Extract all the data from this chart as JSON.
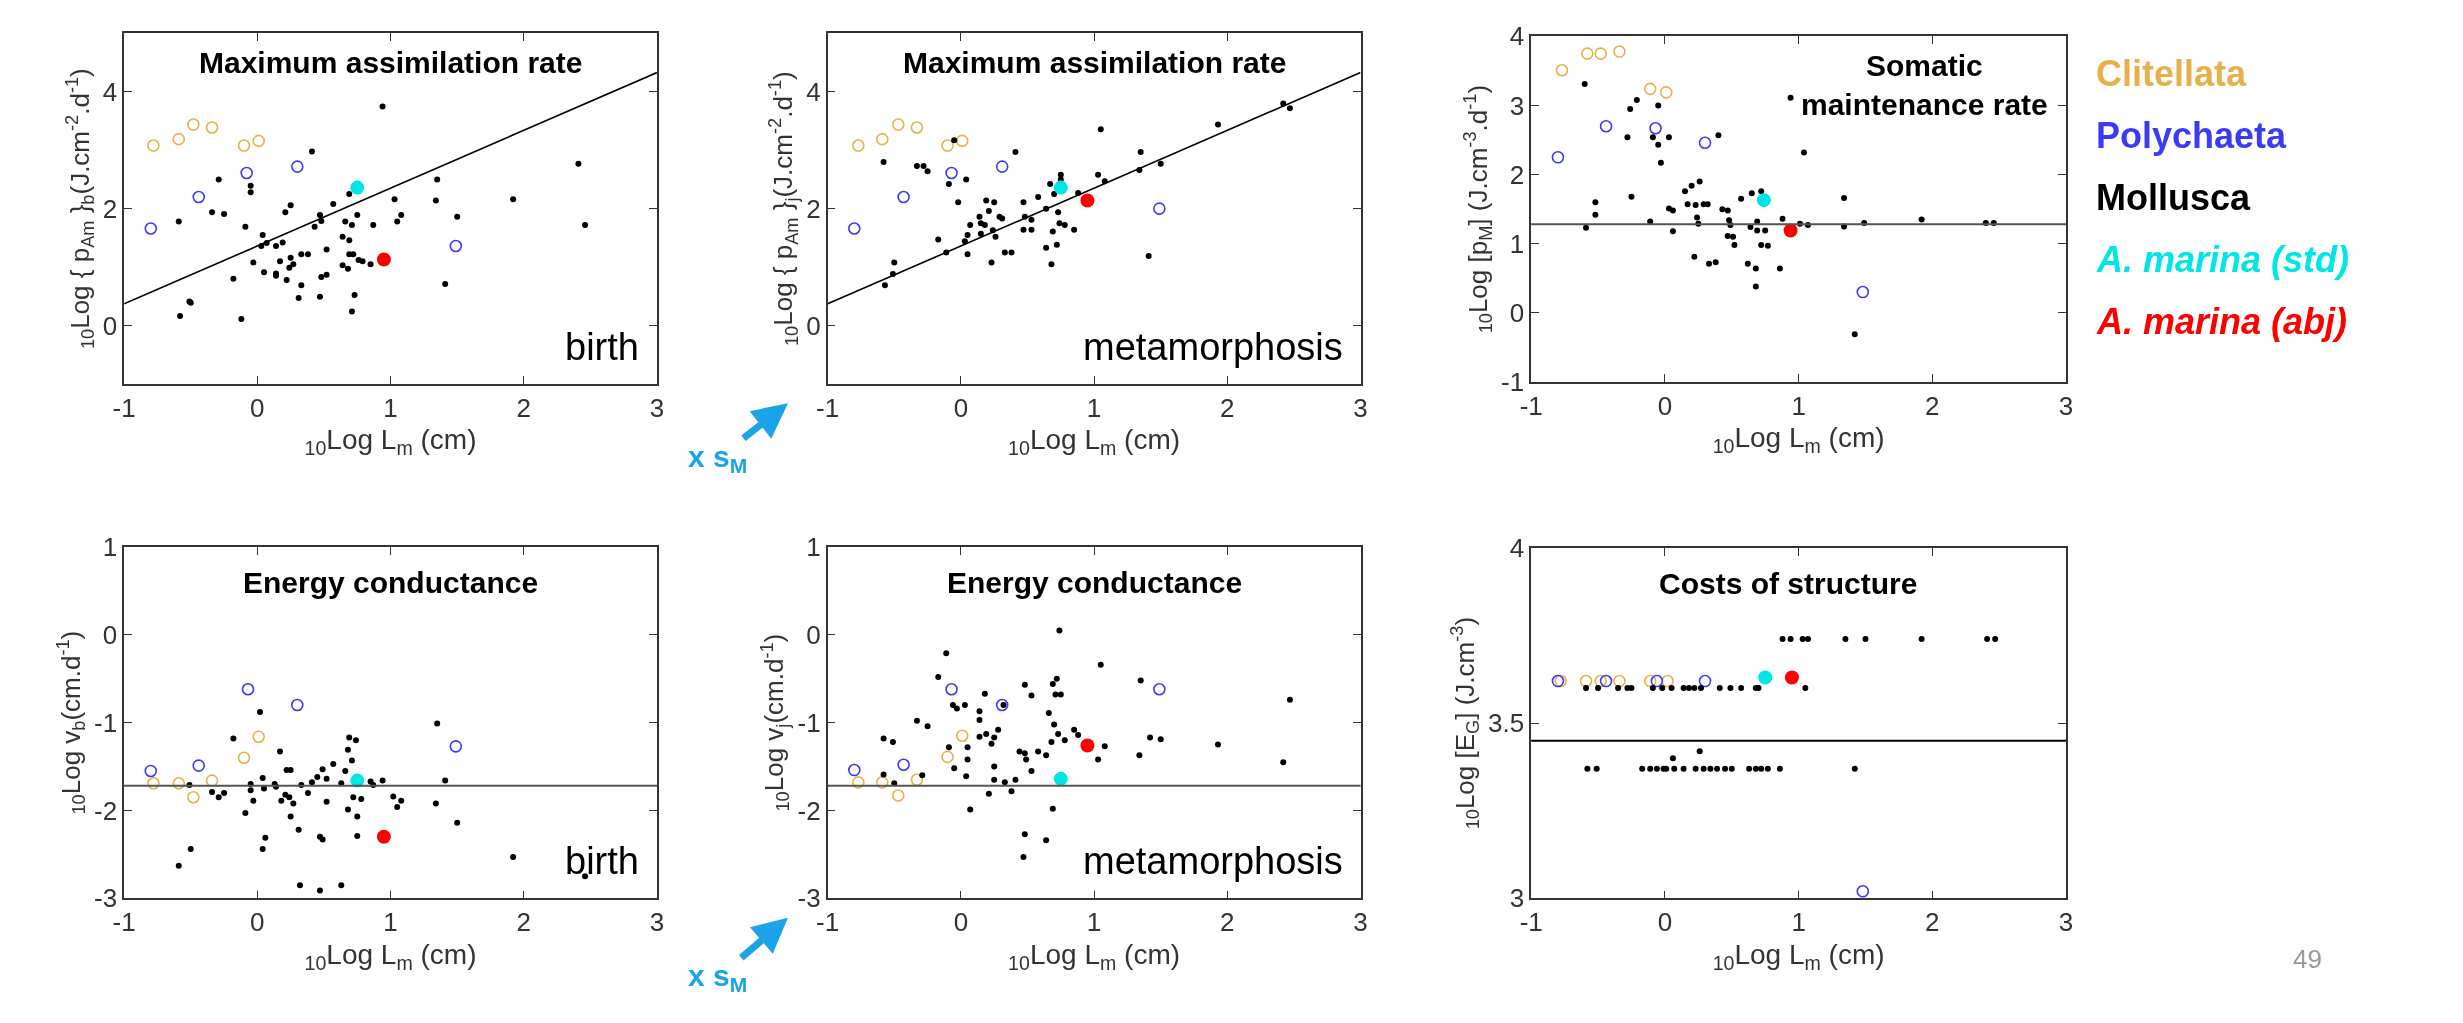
{
  "chart_data": [
    {
      "type": "scatter",
      "title": "Maximum assimilation rate",
      "xlabel": "$_{10}$Log L$_{m}$ (cm)",
      "ylabel": "$_{10}$Log { p$_{Am}$ }$_{b}$(J.cm$^{-2}$.d$^{-1}$)",
      "xlim": [
        -1,
        3
      ],
      "xticks": [
        -1,
        0,
        1,
        2,
        3
      ],
      "ylim": [
        -1,
        5
      ],
      "yticks": [
        0,
        2,
        4
      ],
      "annotations": [
        "birth",
        "x s$_{M}$"
      ],
      "series": [
        {
          "color": "#e8b04a",
          "marker": "circle-open",
          "x": [
            -0.78,
            -0.59,
            -0.48,
            -0.34,
            -0.1,
            0.01
          ],
          "values": [
            3.08,
            3.19,
            3.44,
            3.39,
            3.08,
            3.16
          ]
        },
        {
          "color": "#3b3bf5",
          "marker": "circle-open",
          "x": [
            -0.8,
            -0.44,
            -0.08,
            0.3,
            1.49
          ],
          "values": [
            1.66,
            2.2,
            2.61,
            2.72,
            1.36
          ]
        },
        {
          "color": "#000000",
          "marker": "circle",
          "x": [
            0.94,
            0.41,
            -0.29,
            -0.05,
            -0.05,
            0.25,
            0.21,
            -0.34,
            -0.25,
            -0.59,
            -0.09,
            0.57,
            0.69,
            0.47,
            0.48,
            0.43,
            0.66,
            0.71,
            0.75,
            0.87,
            1.03,
            1.08,
            1.05,
            1.35,
            1.34,
            1.5,
            1.92,
            2.41,
            2.46,
            1.41,
            0.04,
            0.03,
            0.07,
            0.19,
            0.14,
            0.64,
            0.69,
            0.52,
            0.33,
            0.38,
            0.25,
            0.17,
            0.27,
            0.24,
            -0.03,
            0.05,
            0.14,
            0.14,
            0.22,
            -0.18,
            0.33,
            0.48,
            0.52,
            0.64,
            0.68,
            0.69,
            0.72,
            0.76,
            0.79,
            0.85,
            0.31,
            0.47,
            0.73,
            0.71,
            -0.51,
            -0.5,
            -0.58,
            -0.12
          ],
          "values": [
            3.75,
            2.98,
            2.5,
            2.39,
            2.28,
            2.06,
            1.94,
            1.94,
            1.91,
            1.78,
            1.69,
            2.08,
            2.25,
            1.89,
            1.79,
            1.69,
            1.78,
            1.72,
            1.89,
            1.72,
            2.16,
            1.89,
            1.78,
            2.5,
            2.14,
            1.86,
            2.16,
            2.77,
            1.72,
            0.71,
            1.55,
            1.36,
            1.41,
            1.42,
            1.36,
            1.52,
            1.46,
            1.3,
            1.22,
            1.22,
            1.16,
            1.1,
            1.05,
            0.99,
            1.08,
            0.91,
            0.89,
            0.85,
            0.78,
            0.8,
            0.69,
            0.83,
            0.87,
            1.03,
            0.97,
            1.22,
            1.22,
            1.12,
            1.1,
            1.05,
            0.47,
            0.49,
            0.52,
            0.24,
            0.41,
            0.39,
            0.16,
            0.11
          ]
        },
        {
          "color": "#00e5e5",
          "marker": "circle",
          "x": [
            0.75
          ],
          "values": [
            2.36
          ]
        },
        {
          "color": "#ff0000",
          "marker": "circle",
          "x": [
            0.95
          ],
          "values": [
            1.13
          ]
        },
        {
          "type": "line",
          "color": "#000000",
          "marker": "none",
          "x": [
            -1,
            3
          ],
          "values": [
            0.37,
            4.33
          ]
        }
      ]
    },
    {
      "type": "scatter",
      "title": "Maximum assimilation rate",
      "xlabel": "$_{10}$Log L$_{m}$ (cm)",
      "ylabel": "$_{10}$Log { p$_{Am}$ }$_{j}$(J.cm$^{-2}$.d$^{-1}$)",
      "xlim": [
        -1,
        3
      ],
      "xticks": [
        -1,
        0,
        1,
        2,
        3
      ],
      "ylim": [
        -1,
        5
      ],
      "yticks": [
        0,
        2,
        4
      ],
      "annotations": [
        "metamorphosis"
      ],
      "series": [
        {
          "color": "#e8b04a",
          "marker": "circle-open",
          "x": [
            -0.77,
            -0.59,
            -0.47,
            -0.33,
            -0.1,
            0.01
          ],
          "values": [
            3.08,
            3.19,
            3.44,
            3.39,
            3.08,
            3.16
          ]
        },
        {
          "color": "#3b3bf5",
          "marker": "circle-open",
          "x": [
            -0.8,
            -0.43,
            -0.07,
            0.31,
            1.49
          ],
          "values": [
            1.66,
            2.2,
            2.61,
            2.72,
            2.0
          ]
        },
        {
          "color": "#000000",
          "marker": "circle",
          "x": [
            2.42,
            2.47,
            1.93,
            1.05,
            1.35,
            1.5,
            1.34,
            0.41,
            -0.05,
            -0.58,
            -0.33,
            -0.28,
            -0.25,
            0.04,
            -0.09,
            -0.02,
            0.19,
            0.25,
            0.58,
            0.47,
            0.67,
            0.75,
            0.75,
            1.03,
            1.08,
            0.7,
            0.88,
            0.64,
            0.73,
            0.48,
            0.53,
            0.14,
            0.21,
            0.29,
            0.31,
            0.07,
            0.15,
            0.18,
            0.24,
            0.15,
            0.26,
            0.05,
            0.03,
            -0.17,
            0.47,
            0.53,
            0.69,
            0.74,
            0.78,
            0.85,
            0.72,
            0.64,
            0.33,
            0.38,
            0.05,
            -0.11,
            0.23,
            0.68,
            1.41,
            -0.5,
            -0.51,
            -0.57
          ],
          "values": [
            3.8,
            3.72,
            3.44,
            3.36,
            2.97,
            2.77,
            2.66,
            2.97,
            3.17,
            2.8,
            2.73,
            2.73,
            2.64,
            2.5,
            2.42,
            2.11,
            2.14,
            2.11,
            2.2,
            2.11,
            2.42,
            2.58,
            2.5,
            2.58,
            2.47,
            2.25,
            2.27,
            2.0,
            1.94,
            1.86,
            1.81,
            1.86,
            1.96,
            1.86,
            1.83,
            1.72,
            1.75,
            1.72,
            1.63,
            1.57,
            1.52,
            1.55,
            1.44,
            1.47,
            1.64,
            1.64,
            1.61,
            1.75,
            1.72,
            1.64,
            1.38,
            1.33,
            1.25,
            1.25,
            1.22,
            1.25,
            1.08,
            1.05,
            1.19,
            1.08,
            0.88,
            0.69
          ]
        },
        {
          "color": "#00e5e5",
          "marker": "circle",
          "x": [
            0.75
          ],
          "values": [
            2.36
          ]
        },
        {
          "color": "#ff0000",
          "marker": "circle",
          "x": [
            0.95
          ],
          "values": [
            2.14
          ]
        },
        {
          "type": "line",
          "color": "#000000",
          "marker": "none",
          "x": [
            -1,
            3
          ],
          "values": [
            0.37,
            4.33
          ]
        }
      ]
    },
    {
      "type": "scatter",
      "title": "Somatic maintenance rate",
      "xlabel": "$_{10}$Log L$_{m}$ (cm)",
      "ylabel": "$_{10}$Log [p$_{M}$] (J.cm$^{-3}$.d$^{-1}$)",
      "xlim": [
        -1,
        3
      ],
      "xticks": [
        -1,
        0,
        1,
        2,
        3
      ],
      "ylim": [
        -1,
        4
      ],
      "yticks": [
        -1,
        0,
        1,
        2,
        3,
        4
      ],
      "ref_lines": [
        {
          "axis": "y",
          "value": 1.28,
          "color": "#555555"
        }
      ],
      "series": [
        {
          "name": "Clitellata",
          "color": "#e8b04a",
          "marker": "circle-open",
          "x": [
            -0.77,
            -0.58,
            -0.48,
            -0.34,
            -0.11,
            0.01
          ],
          "values": [
            3.51,
            3.75,
            3.75,
            3.78,
            3.24,
            3.19
          ]
        },
        {
          "name": "Polychaeta",
          "color": "#3b3bf5",
          "marker": "circle-open",
          "x": [
            -0.8,
            -0.44,
            -0.07,
            0.3,
            1.48
          ],
          "values": [
            2.25,
            2.7,
            2.67,
            2.46,
            0.3
          ]
        },
        {
          "name": "Mollusca",
          "color": "#000000",
          "marker": "circle",
          "x": [
            -0.6,
            -0.21,
            -0.26,
            -0.05,
            -0.28,
            -0.09,
            0.03,
            -0.05,
            0.4,
            -0.03,
            0.94,
            1.04,
            -0.52,
            -0.52,
            -0.59,
            -0.25,
            -0.11,
            0.03,
            0.06,
            0.06,
            0.15,
            0.2,
            0.26,
            0.17,
            0.23,
            0.29,
            0.32,
            0.24,
            0.25,
            0.43,
            0.47,
            0.48,
            0.49,
            0.47,
            0.51,
            0.52,
            0.22,
            0.33,
            0.38,
            0.57,
            0.65,
            0.72,
            0.64,
            0.69,
            0.69,
            0.75,
            0.72,
            0.77,
            0.62,
            0.68,
            0.68,
            0.86,
            0.88,
            1.01,
            1.07,
            1.34,
            1.34,
            1.49,
            1.42,
            1.92,
            2.4,
            2.46
          ],
          "values": [
            3.31,
            3.08,
            2.95,
            3.0,
            2.54,
            2.54,
            2.54,
            2.43,
            2.57,
            2.17,
            3.11,
            2.32,
            1.6,
            1.42,
            1.23,
            1.68,
            1.32,
            1.51,
            1.48,
            1.18,
            1.76,
            1.84,
            1.9,
            1.57,
            1.56,
            1.57,
            1.57,
            1.38,
            1.29,
            1.5,
            1.48,
            1.34,
            1.27,
            1.11,
            1.1,
            0.98,
            0.81,
            0.71,
            0.73,
            1.65,
            1.73,
            1.76,
            1.24,
            1.32,
            1.19,
            1.19,
            0.98,
            0.97,
            0.71,
            0.64,
            0.38,
            0.64,
            1.36,
            1.29,
            1.27,
            1.66,
            1.25,
            1.3,
            -0.31,
            1.35,
            1.3,
            1.3
          ]
        },
        {
          "name": "A. marina (std)",
          "color": "#00e5e5",
          "marker": "circle",
          "x": [
            0.74
          ],
          "values": [
            1.63
          ]
        },
        {
          "name": "A. marina (abj)",
          "color": "#ff0000",
          "marker": "circle",
          "x": [
            0.94
          ],
          "values": [
            1.19
          ]
        }
      ]
    },
    {
      "type": "scatter",
      "title": "Energy conductance",
      "xlabel": "$_{10}$Log L$_{m}$ (cm)",
      "ylabel": "$_{10}$Log v$_{b}$(cm.d$^{-1}$)",
      "xlim": [
        -1,
        3
      ],
      "xticks": [
        -1,
        0,
        1,
        2,
        3
      ],
      "ylim": [
        -3,
        1
      ],
      "yticks": [
        -3,
        -2,
        -1,
        0,
        1
      ],
      "annotations": [
        "birth",
        "x s$_{M}$"
      ],
      "ref_lines": [
        {
          "axis": "y",
          "value": -1.72,
          "color": "#555555"
        }
      ],
      "series": [
        {
          "color": "#e8b04a",
          "marker": "circle-open",
          "x": [
            -0.78,
            -0.59,
            -0.48,
            -0.34,
            -0.1,
            0.01
          ],
          "values": [
            -1.69,
            -1.69,
            -1.85,
            -1.66,
            -1.4,
            -1.16
          ]
        },
        {
          "color": "#3b3bf5",
          "marker": "circle-open",
          "x": [
            -0.8,
            -0.44,
            -0.07,
            0.3,
            1.49
          ],
          "values": [
            -1.55,
            -1.49,
            -0.62,
            -0.8,
            -1.27
          ]
        },
        {
          "color": "#000000",
          "marker": "circle",
          "x": [
            0.02,
            -0.18,
            0.17,
            1.35,
            0.69,
            0.74,
            0.68,
            0.71,
            0.66,
            0.57,
            0.49,
            0.52,
            0.45,
            0.41,
            0.22,
            0.25,
            0.04,
            -0.05,
            -0.05,
            0.05,
            0.13,
            0.14,
            0.33,
            0.38,
            0.63,
            0.85,
            0.94,
            0.87,
            1.41,
            -0.51,
            -0.34,
            -0.29,
            -0.25,
            -0.03,
            -0.09,
            0.18,
            0.21,
            0.24,
            0.27,
            0.25,
            0.52,
            0.72,
            0.78,
            0.68,
            0.75,
            1.02,
            1.08,
            1.05,
            1.34,
            1.5,
            0.31,
            0.47,
            0.49,
            0.75,
            0.06,
            0.04,
            -0.5,
            -0.59,
            0.32,
            0.47,
            0.63,
            1.92,
            2.46
          ],
          "values": [
            -0.88,
            -1.18,
            -1.33,
            -1.01,
            -1.17,
            -1.2,
            -1.31,
            -1.43,
            -1.55,
            -1.47,
            -1.53,
            -1.64,
            -1.62,
            -1.68,
            -1.54,
            -1.54,
            -1.63,
            -1.7,
            -1.77,
            -1.75,
            -1.7,
            -1.73,
            -1.71,
            -1.8,
            -1.69,
            -1.67,
            -1.66,
            -1.71,
            -1.66,
            -1.71,
            -1.79,
            -1.85,
            -1.8,
            -1.89,
            -2.03,
            -1.89,
            -1.82,
            -1.85,
            -1.92,
            -2.07,
            -1.9,
            -1.85,
            -1.87,
            -1.99,
            -2.07,
            -1.84,
            -1.89,
            -1.96,
            -1.92,
            -2.14,
            -2.22,
            -2.3,
            -2.33,
            -2.29,
            -2.31,
            -2.44,
            -2.44,
            -2.63,
            -2.85,
            -2.91,
            -2.85,
            -2.53,
            -2.75
          ]
        },
        {
          "color": "#00e5e5",
          "marker": "circle",
          "x": [
            0.75
          ],
          "values": [
            -1.66
          ]
        },
        {
          "color": "#ff0000",
          "marker": "circle",
          "x": [
            0.95
          ],
          "values": [
            -2.3
          ]
        }
      ]
    },
    {
      "type": "scatter",
      "title": "Energy conductance",
      "xlabel": "$_{10}$Log L$_{m}$ (cm)",
      "ylabel": "$_{10}$Log v$_{j}$(cm.d$^{-1}$)",
      "xlim": [
        -1,
        3
      ],
      "xticks": [
        -1,
        0,
        1,
        2,
        3
      ],
      "ylim": [
        -3,
        1
      ],
      "yticks": [
        -3,
        -2,
        -1,
        0,
        1
      ],
      "annotations": [
        "metamorphosis"
      ],
      "ref_lines": [
        {
          "axis": "y",
          "value": -1.72,
          "color": "#555555"
        }
      ],
      "series": [
        {
          "color": "#e8b04a",
          "marker": "circle-open",
          "x": [
            -0.77,
            -0.59,
            -0.47,
            -0.33,
            -0.1,
            0.01
          ],
          "values": [
            -1.68,
            -1.68,
            -1.83,
            -1.65,
            -1.39,
            -1.15
          ]
        },
        {
          "color": "#3b3bf5",
          "marker": "circle-open",
          "x": [
            -0.8,
            -0.43,
            -0.07,
            0.31,
            1.49
          ],
          "values": [
            -1.54,
            -1.48,
            -0.62,
            -0.8,
            -0.62
          ]
        },
        {
          "color": "#000000",
          "marker": "circle",
          "x": [
            0.74,
            -0.11,
            1.05,
            -0.17,
            1.35,
            2.47,
            0.48,
            0.72,
            0.69,
            0.53,
            0.71,
            0.75,
            0.18,
            -0.06,
            0.03,
            -0.03,
            0.32,
            0.14,
            0.14,
            -0.33,
            -0.25,
            0.28,
            0.19,
            0.14,
            0.25,
            0.23,
            0.66,
            0.7,
            0.73,
            0.68,
            0.78,
            0.85,
            0.88,
            1.08,
            1.03,
            1.42,
            1.5,
            1.34,
            1.93,
            2.42,
            -0.58,
            -0.51,
            -0.09,
            0.05,
            0.05,
            -0.05,
            0.04,
            0.44,
            0.48,
            0.58,
            0.64,
            0.49,
            0.53,
            0.25,
            0.25,
            0.33,
            0.41,
            -0.29,
            -0.58,
            -0.5,
            0.21,
            0.38,
            0.07,
            0.69,
            0.48,
            0.64,
            0.47
          ],
          "values": [
            0.05,
            -0.21,
            -0.34,
            -0.48,
            -0.52,
            -0.74,
            -0.57,
            -0.5,
            -0.56,
            -0.69,
            -0.68,
            -0.68,
            -0.67,
            -0.8,
            -0.8,
            -0.84,
            -0.8,
            -0.87,
            -0.97,
            -0.98,
            -1.04,
            -1.08,
            -1.13,
            -1.16,
            -1.17,
            -1.24,
            -0.89,
            -1.02,
            -1.13,
            -1.22,
            -1.2,
            -1.08,
            -1.14,
            -1.27,
            -1.42,
            -1.17,
            -1.19,
            -1.37,
            -1.25,
            -1.45,
            -1.18,
            -1.22,
            -1.28,
            -1.42,
            -1.28,
            -1.52,
            -1.61,
            -1.33,
            -1.35,
            -1.33,
            -1.37,
            -1.42,
            -1.55,
            -1.5,
            -1.65,
            -1.68,
            -1.65,
            -1.6,
            -1.59,
            -1.69,
            -1.81,
            -1.78,
            -1.99,
            -1.98,
            -2.27,
            -2.34,
            -2.53
          ]
        },
        {
          "color": "#00e5e5",
          "marker": "circle",
          "x": [
            0.75
          ],
          "values": [
            -1.64
          ]
        },
        {
          "color": "#ff0000",
          "marker": "circle",
          "x": [
            0.95
          ],
          "values": [
            -1.26
          ]
        }
      ]
    },
    {
      "type": "scatter",
      "title": "Costs of structure",
      "xlabel": "$_{10}$Log L$_{m}$ (cm)",
      "ylabel": "$_{10}$Log [E$_{G}$] (J.cm$^{-3}$)",
      "xlim": [
        -1,
        3
      ],
      "xticks": [
        -1,
        0,
        1,
        2,
        3
      ],
      "ylim": [
        3,
        4
      ],
      "yticks": [
        3,
        3.5,
        4
      ],
      "annotations": [
        "49"
      ],
      "ref_lines": [
        {
          "axis": "y",
          "value": 3.45,
          "color": "#000000"
        }
      ],
      "series": [
        {
          "color": "#e8b04a",
          "marker": "circle-open",
          "x": [
            -0.78,
            -0.59,
            -0.48,
            -0.34,
            -0.11,
            0.02
          ],
          "values": [
            3.62,
            3.62,
            3.62,
            3.62,
            3.62,
            3.62
          ]
        },
        {
          "color": "#3b3bf5",
          "marker": "circle-open",
          "x": [
            -0.8,
            -0.44,
            -0.06,
            0.3,
            1.48
          ],
          "values": [
            3.62,
            3.62,
            3.62,
            3.62,
            3.02
          ]
        },
        {
          "color": "#000000",
          "marker": "circle",
          "x": [
            0.88,
            0.94,
            1.03,
            1.07,
            1.35,
            1.5,
            1.92,
            2.41,
            2.47,
            -0.59,
            -0.5,
            -0.35,
            -0.28,
            -0.25,
            -0.09,
            -0.02,
            0.05,
            0.14,
            0.18,
            0.22,
            0.27,
            0.41,
            0.49,
            0.57,
            0.68,
            0.7,
            1.05,
            -0.58,
            -0.51,
            -0.17,
            -0.11,
            -0.06,
            -0.01,
            0.01,
            0.07,
            0.14,
            0.23,
            0.29,
            0.34,
            0.39,
            0.45,
            0.5,
            0.63,
            0.68,
            0.72,
            0.77,
            0.86,
            1.42,
            0.06,
            0.26
          ],
          "values": [
            3.74,
            3.74,
            3.74,
            3.74,
            3.74,
            3.74,
            3.74,
            3.74,
            3.74,
            3.6,
            3.6,
            3.6,
            3.6,
            3.6,
            3.6,
            3.6,
            3.6,
            3.6,
            3.6,
            3.6,
            3.6,
            3.6,
            3.6,
            3.6,
            3.6,
            3.6,
            3.6,
            3.37,
            3.37,
            3.37,
            3.37,
            3.37,
            3.37,
            3.37,
            3.37,
            3.37,
            3.37,
            3.37,
            3.37,
            3.37,
            3.37,
            3.37,
            3.37,
            3.37,
            3.37,
            3.37,
            3.37,
            3.37,
            3.4,
            3.42
          ]
        },
        {
          "color": "#00e5e5",
          "marker": "circle",
          "x": [
            0.75
          ],
          "values": [
            3.63
          ]
        },
        {
          "color": "#ff0000",
          "marker": "circle",
          "x": [
            0.95
          ],
          "values": [
            3.63
          ]
        }
      ]
    }
  ]
}
